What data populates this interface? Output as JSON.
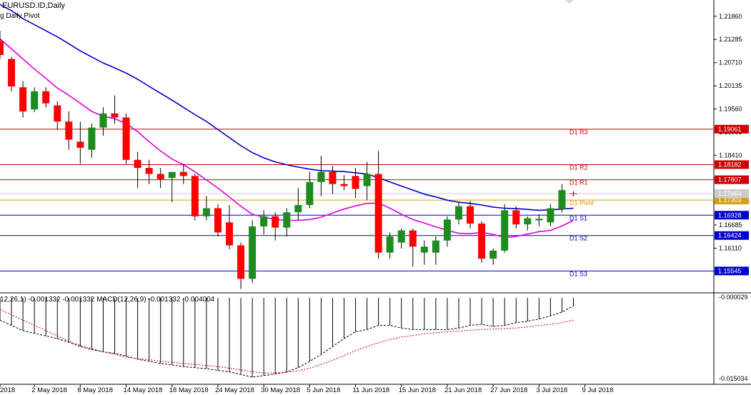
{
  "chart_data": {
    "type": "candlestick",
    "symbol_label": "EURUSD.ID,Daily",
    "indicator_label": "g Daily Pivot",
    "price_axis": {
      "min": 1.1502,
      "max": 1.2221,
      "ticks": [
        "1.21860",
        "1.21285",
        "1.20710",
        "1.20135",
        "1.19560",
        "1.18985",
        "1.18410",
        "1.17835",
        "1.17260",
        "1.16685",
        "1.16110",
        "1.15535"
      ]
    },
    "date_ticks": [
      {
        "label": "2018",
        "index": 0
      },
      {
        "label": "2 May 2018",
        "index": 3
      },
      {
        "label": "8 May 2018",
        "index": 7
      },
      {
        "label": "14 May 2018",
        "index": 11
      },
      {
        "label": "18 May 2018",
        "index": 15
      },
      {
        "label": "24 May 2018",
        "index": 19
      },
      {
        "label": "30 May 2018",
        "index": 23
      },
      {
        "label": "5 Jun 2018",
        "index": 27
      },
      {
        "label": "11 Jun 2018",
        "index": 31
      },
      {
        "label": "15 Jun 2018",
        "index": 35
      },
      {
        "label": "21 Jun 2018",
        "index": 39
      },
      {
        "label": "27 Jun 2018",
        "index": 43
      },
      {
        "label": "3 Jul 2018",
        "index": 47
      },
      {
        "label": "9 Jul 2018",
        "index": 51
      }
    ],
    "candles": [
      {
        "o": 1.2125,
        "h": 1.215,
        "l": 1.208,
        "c": 1.209
      },
      {
        "o": 1.208,
        "h": 1.2085,
        "l": 1.2,
        "c": 1.2012
      },
      {
        "o": 1.201,
        "h": 1.2025,
        "l": 1.1935,
        "c": 1.195
      },
      {
        "o": 1.1955,
        "h": 1.201,
        "l": 1.1948,
        "c": 1.2
      },
      {
        "o": 1.2,
        "h": 1.201,
        "l": 1.196,
        "c": 1.197
      },
      {
        "o": 1.1965,
        "h": 1.1975,
        "l": 1.1905,
        "c": 1.1925
      },
      {
        "o": 1.1925,
        "h": 1.195,
        "l": 1.1855,
        "c": 1.188
      },
      {
        "o": 1.1875,
        "h": 1.1925,
        "l": 1.182,
        "c": 1.186
      },
      {
        "o": 1.1855,
        "h": 1.192,
        "l": 1.1835,
        "c": 1.191
      },
      {
        "o": 1.191,
        "h": 1.196,
        "l": 1.189,
        "c": 1.1945
      },
      {
        "o": 1.1945,
        "h": 1.199,
        "l": 1.192,
        "c": 1.1935
      },
      {
        "o": 1.1935,
        "h": 1.1945,
        "l": 1.182,
        "c": 1.183
      },
      {
        "o": 1.183,
        "h": 1.185,
        "l": 1.176,
        "c": 1.181
      },
      {
        "o": 1.181,
        "h": 1.183,
        "l": 1.177,
        "c": 1.1795
      },
      {
        "o": 1.1795,
        "h": 1.181,
        "l": 1.176,
        "c": 1.1782
      },
      {
        "o": 1.1785,
        "h": 1.18,
        "l": 1.1725,
        "c": 1.18
      },
      {
        "o": 1.18,
        "h": 1.182,
        "l": 1.177,
        "c": 1.179
      },
      {
        "o": 1.179,
        "h": 1.1795,
        "l": 1.168,
        "c": 1.169
      },
      {
        "o": 1.169,
        "h": 1.174,
        "l": 1.168,
        "c": 1.171
      },
      {
        "o": 1.171,
        "h": 1.172,
        "l": 1.164,
        "c": 1.165
      },
      {
        "o": 1.1675,
        "h": 1.1718,
        "l": 1.1608,
        "c": 1.1618
      },
      {
        "o": 1.1618,
        "h": 1.1625,
        "l": 1.151,
        "c": 1.1535
      },
      {
        "o": 1.1535,
        "h": 1.168,
        "l": 1.1525,
        "c": 1.1665
      },
      {
        "o": 1.1665,
        "h": 1.1705,
        "l": 1.1645,
        "c": 1.169
      },
      {
        "o": 1.169,
        "h": 1.17,
        "l": 1.163,
        "c": 1.1662
      },
      {
        "o": 1.1662,
        "h": 1.171,
        "l": 1.164,
        "c": 1.17
      },
      {
        "o": 1.17,
        "h": 1.176,
        "l": 1.168,
        "c": 1.1718
      },
      {
        "o": 1.1718,
        "h": 1.18,
        "l": 1.171,
        "c": 1.1775
      },
      {
        "o": 1.1775,
        "h": 1.184,
        "l": 1.174,
        "c": 1.18
      },
      {
        "o": 1.18,
        "h": 1.1815,
        "l": 1.1745,
        "c": 1.177
      },
      {
        "o": 1.177,
        "h": 1.1792,
        "l": 1.1755,
        "c": 1.1765
      },
      {
        "o": 1.179,
        "h": 1.181,
        "l": 1.1735,
        "c": 1.1758
      },
      {
        "o": 1.1765,
        "h": 1.1825,
        "l": 1.173,
        "c": 1.1795
      },
      {
        "o": 1.1795,
        "h": 1.1852,
        "l": 1.1585,
        "c": 1.16
      },
      {
        "o": 1.16,
        "h": 1.165,
        "l": 1.1585,
        "c": 1.164
      },
      {
        "o": 1.1625,
        "h": 1.166,
        "l": 1.161,
        "c": 1.1655
      },
      {
        "o": 1.1655,
        "h": 1.166,
        "l": 1.1565,
        "c": 1.1615
      },
      {
        "o": 1.16,
        "h": 1.163,
        "l": 1.157,
        "c": 1.1615
      },
      {
        "o": 1.16,
        "h": 1.164,
        "l": 1.157,
        "c": 1.163
      },
      {
        "o": 1.163,
        "h": 1.169,
        "l": 1.1615,
        "c": 1.1682
      },
      {
        "o": 1.1682,
        "h": 1.1725,
        "l": 1.167,
        "c": 1.1715
      },
      {
        "o": 1.1715,
        "h": 1.1728,
        "l": 1.166,
        "c": 1.1672
      },
      {
        "o": 1.1672,
        "h": 1.1678,
        "l": 1.1575,
        "c": 1.1585
      },
      {
        "o": 1.1585,
        "h": 1.161,
        "l": 1.157,
        "c": 1.1605
      },
      {
        "o": 1.1605,
        "h": 1.172,
        "l": 1.16,
        "c": 1.1705
      },
      {
        "o": 1.1705,
        "h": 1.1715,
        "l": 1.166,
        "c": 1.167
      },
      {
        "o": 1.167,
        "h": 1.169,
        "l": 1.1655,
        "c": 1.1685
      },
      {
        "o": 1.168,
        "h": 1.1695,
        "l": 1.1665,
        "c": 1.1684
      },
      {
        "o": 1.1675,
        "h": 1.172,
        "l": 1.1665,
        "c": 1.171
      },
      {
        "o": 1.1708,
        "h": 1.177,
        "l": 1.17,
        "c": 1.1755
      },
      {
        "o": 1.1747,
        "h": 1.1752,
        "l": 1.174,
        "c": 1.1746
      }
    ],
    "ma_slow": [
      1.2215,
      1.22,
      1.218,
      1.2165,
      1.215,
      1.2135,
      1.2118,
      1.21,
      1.2085,
      1.207,
      1.2058,
      1.2045,
      1.203,
      1.2012,
      1.1995,
      1.1978,
      1.196,
      1.1942,
      1.1925,
      1.1905,
      1.1885,
      1.1865,
      1.1848,
      1.1835,
      1.1825,
      1.1818,
      1.1812,
      1.1807,
      1.1803,
      1.1802,
      1.1801,
      1.1798,
      1.1795,
      1.1786,
      1.1775,
      1.1765,
      1.1755,
      1.1745,
      1.1738,
      1.173,
      1.1725,
      1.1722,
      1.1718,
      1.1713,
      1.171,
      1.1709,
      1.1707,
      1.1705,
      1.1706,
      1.1708,
      1.171
    ],
    "ma_fast": [
      1.213,
      1.2105,
      1.208,
      1.2055,
      1.2032,
      1.2008,
      1.199,
      1.197,
      1.195,
      1.1938,
      1.1932,
      1.192,
      1.19,
      1.1875,
      1.1852,
      1.1832,
      1.1818,
      1.18,
      1.178,
      1.176,
      1.1738,
      1.1715,
      1.1695,
      1.1688,
      1.1682,
      1.168,
      1.168,
      1.1682,
      1.1688,
      1.1698,
      1.1708,
      1.1716,
      1.1722,
      1.1723,
      1.171,
      1.1695,
      1.1682,
      1.1673,
      1.1664,
      1.1655,
      1.1648,
      1.1647,
      1.165,
      1.1645,
      1.1638,
      1.164,
      1.1646,
      1.1652,
      1.1655,
      1.1666,
      1.168
    ],
    "pivot_lines": [
      {
        "label": "D1 R3",
        "value": 1.19061,
        "value_label": "1.19061",
        "color": "#cc0000"
      },
      {
        "label": "D1 R2",
        "value": 1.18182,
        "value_label": "1.18182",
        "color": "#cc0000"
      },
      {
        "label": "D1 R1",
        "value": 1.17807,
        "value_label": "1.17807",
        "color": "#cc0000"
      },
      {
        "label": "D1 Pivot",
        "value": 1.17303,
        "value_label": "1.17303",
        "color": "#d4a017"
      },
      {
        "label": "D1 S1",
        "value": 1.16928,
        "value_label": "1.16928",
        "color": "#0000cc"
      },
      {
        "label": "D1 S2",
        "value": 1.16424,
        "value_label": "1.16424",
        "color": "#0000cc"
      },
      {
        "label": "D1 S3",
        "value": 1.15545,
        "value_label": "1.15545",
        "color": "#0000cc"
      }
    ],
    "current_price": {
      "value": 1.17464,
      "label": "1.17464"
    },
    "macd": {
      "label": "12,26,1) -0.001332 -0.001332 MACD(12,26,9) -0.001332 -0.004004",
      "axis_top": "-0.000029",
      "axis_bottom": "-0.015034",
      "min": -0.0152,
      "max": 0.0002,
      "main": [
        -0.004,
        -0.005,
        -0.006,
        -0.0065,
        -0.007,
        -0.0075,
        -0.0082,
        -0.009,
        -0.0096,
        -0.01,
        -0.0103,
        -0.0108,
        -0.0114,
        -0.0118,
        -0.0122,
        -0.0125,
        -0.0128,
        -0.013,
        -0.0132,
        -0.0135,
        -0.0138,
        -0.0143,
        -0.0148,
        -0.0145,
        -0.0142,
        -0.0138,
        -0.013,
        -0.0118,
        -0.0105,
        -0.009,
        -0.0075,
        -0.0062,
        -0.0058,
        -0.005,
        -0.005,
        -0.0055,
        -0.0058,
        -0.0058,
        -0.0058,
        -0.0058,
        -0.0055,
        -0.005,
        -0.0048,
        -0.0052,
        -0.005,
        -0.0045,
        -0.0042,
        -0.0038,
        -0.0032,
        -0.0025,
        -0.0013
      ],
      "signal": [
        -0.002,
        -0.003,
        -0.004,
        -0.005,
        -0.006,
        -0.007,
        -0.008,
        -0.0088,
        -0.0094,
        -0.01,
        -0.0105,
        -0.011,
        -0.0113,
        -0.0115,
        -0.0118,
        -0.012,
        -0.0122,
        -0.0124,
        -0.0126,
        -0.0128,
        -0.0131,
        -0.0134,
        -0.0138,
        -0.014,
        -0.014,
        -0.0139,
        -0.0136,
        -0.0131,
        -0.0124,
        -0.0116,
        -0.0107,
        -0.0098,
        -0.009,
        -0.0083,
        -0.0077,
        -0.0072,
        -0.0069,
        -0.0066,
        -0.0064,
        -0.0062,
        -0.0061,
        -0.0059,
        -0.0058,
        -0.0057,
        -0.0056,
        -0.0055,
        -0.0053,
        -0.005,
        -0.0048,
        -0.0045,
        -0.004
      ]
    },
    "colors": {
      "bull": "#1e8b1e",
      "bear": "#ff0000",
      "ma_slow": "#0000cc",
      "ma_fast": "#dd00dd",
      "current": "#cccccc",
      "pivot_label": "#ff8c00"
    }
  }
}
